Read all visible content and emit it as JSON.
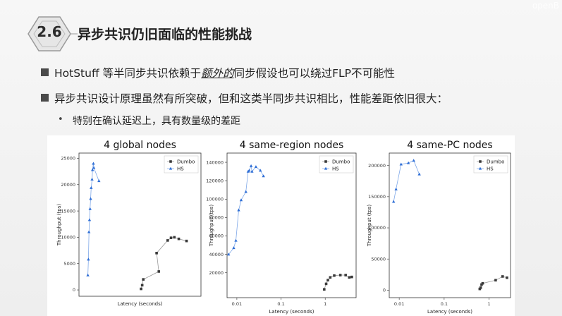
{
  "header": {
    "section_number": "2.6",
    "title": "异步共识仍旧面临的性能挑战",
    "corner_text": "openB"
  },
  "bullets": [
    {
      "pre": "HotStuff 等半同步共识依赖于",
      "emph": "额外的",
      "post": "同步假设也可以绕过FLP不可能性"
    },
    {
      "text": "异步共识设计原理虽然有所突破，但和这类半同步共识相比，性能差距依旧很大："
    }
  ],
  "sub_bullet": {
    "marker": "•",
    "text": "特别在确认延迟上，具有数量级的差距"
  },
  "colors": {
    "dumbo": "#3a3a3a",
    "hs": "#2f6fd6",
    "badge_fill": "#e6e6e6",
    "badge_stroke": "#9a9a9a"
  },
  "chart_data": [
    {
      "type": "scatter",
      "title": "4 global nodes",
      "xlabel": "Latency (seconds)",
      "ylabel": "Throughput (tps)",
      "xscale": "linear",
      "xlim": [
        0,
        1.1
      ],
      "ylim": [
        -1200,
        26000
      ],
      "yticks": [
        0,
        5000,
        10000,
        15000,
        20000,
        25000
      ],
      "xticks": [],
      "legend": "top-right",
      "series": [
        {
          "name": "Dumbo",
          "marker": "square",
          "points": [
            [
              0.56,
              200
            ],
            [
              0.57,
              900
            ],
            [
              0.58,
              2000
            ],
            [
              0.72,
              3500
            ],
            [
              0.7,
              7000
            ],
            [
              0.8,
              9400
            ],
            [
              0.83,
              9900
            ],
            [
              0.86,
              10000
            ],
            [
              0.9,
              9700
            ],
            [
              0.97,
              9300
            ]
          ]
        },
        {
          "name": "HS",
          "marker": "triangle",
          "points": [
            [
              0.08,
              2800
            ],
            [
              0.085,
              5800
            ],
            [
              0.09,
              11000
            ],
            [
              0.095,
              13300
            ],
            [
              0.1,
              15400
            ],
            [
              0.105,
              17300
            ],
            [
              0.11,
              19400
            ],
            [
              0.118,
              21000
            ],
            [
              0.122,
              22800
            ],
            [
              0.13,
              24000
            ],
            [
              0.134,
              23200
            ],
            [
              0.18,
              20700
            ]
          ]
        }
      ]
    },
    {
      "type": "scatter",
      "title": "4 same-region nodes",
      "xlabel": "Latency (seconds)",
      "ylabel": "Throughput (tps)",
      "xscale": "log",
      "xlim": [
        0.006,
        5
      ],
      "ylim": [
        -7000,
        150000
      ],
      "yticks": [
        20000,
        40000,
        60000,
        80000,
        100000,
        120000,
        140000
      ],
      "xticks": [
        {
          "value": 0.01,
          "label": "0.01"
        },
        {
          "value": 0.1,
          "label": "0.1"
        },
        {
          "value": 1,
          "label": "1"
        }
      ],
      "legend": "top-right",
      "series": [
        {
          "name": "Dumbo",
          "marker": "square",
          "points": [
            [
              0.95,
              2000
            ],
            [
              1.05,
              8000
            ],
            [
              1.15,
              12000
            ],
            [
              1.3,
              15000
            ],
            [
              1.6,
              17000
            ],
            [
              2.2,
              17500
            ],
            [
              2.9,
              17500
            ],
            [
              3.5,
              15000
            ],
            [
              4.0,
              15500
            ]
          ]
        },
        {
          "name": "HS",
          "marker": "triangle",
          "points": [
            [
              0.0065,
              40000
            ],
            [
              0.0085,
              47000
            ],
            [
              0.0095,
              55000
            ],
            [
              0.011,
              88000
            ],
            [
              0.0125,
              99000
            ],
            [
              0.016,
              108000
            ],
            [
              0.018,
              130000
            ],
            [
              0.019,
              131000
            ],
            [
              0.021,
              136000
            ],
            [
              0.022,
              130000
            ],
            [
              0.027,
              135000
            ],
            [
              0.034,
              131000
            ],
            [
              0.04,
              125000
            ]
          ]
        }
      ]
    },
    {
      "type": "scatter",
      "title": "4 same-PC nodes",
      "xlabel": "Latency (seconds)",
      "ylabel": "Throughput (tps)",
      "xscale": "log",
      "xlim": [
        0.006,
        3
      ],
      "ylim": [
        -12000,
        220000
      ],
      "yticks": [
        0,
        50000,
        100000,
        150000,
        200000
      ],
      "xticks": [
        {
          "value": 0.01,
          "label": "0.01"
        },
        {
          "value": 0.1,
          "label": "0.1"
        },
        {
          "value": 1,
          "label": "1"
        }
      ],
      "legend": "top-right",
      "series": [
        {
          "name": "Dumbo",
          "marker": "square",
          "points": [
            [
              0.62,
              2000
            ],
            [
              0.65,
              4000
            ],
            [
              0.68,
              9000
            ],
            [
              0.72,
              11000
            ],
            [
              1.4,
              16000
            ],
            [
              2.0,
              22000
            ],
            [
              2.5,
              20000
            ]
          ]
        },
        {
          "name": "HS",
          "marker": "triangle",
          "points": [
            [
              0.0075,
              142000
            ],
            [
              0.0085,
              162000
            ],
            [
              0.011,
              202000
            ],
            [
              0.016,
              204000
            ],
            [
              0.021,
              208000
            ],
            [
              0.028,
              186000
            ]
          ]
        }
      ]
    }
  ]
}
